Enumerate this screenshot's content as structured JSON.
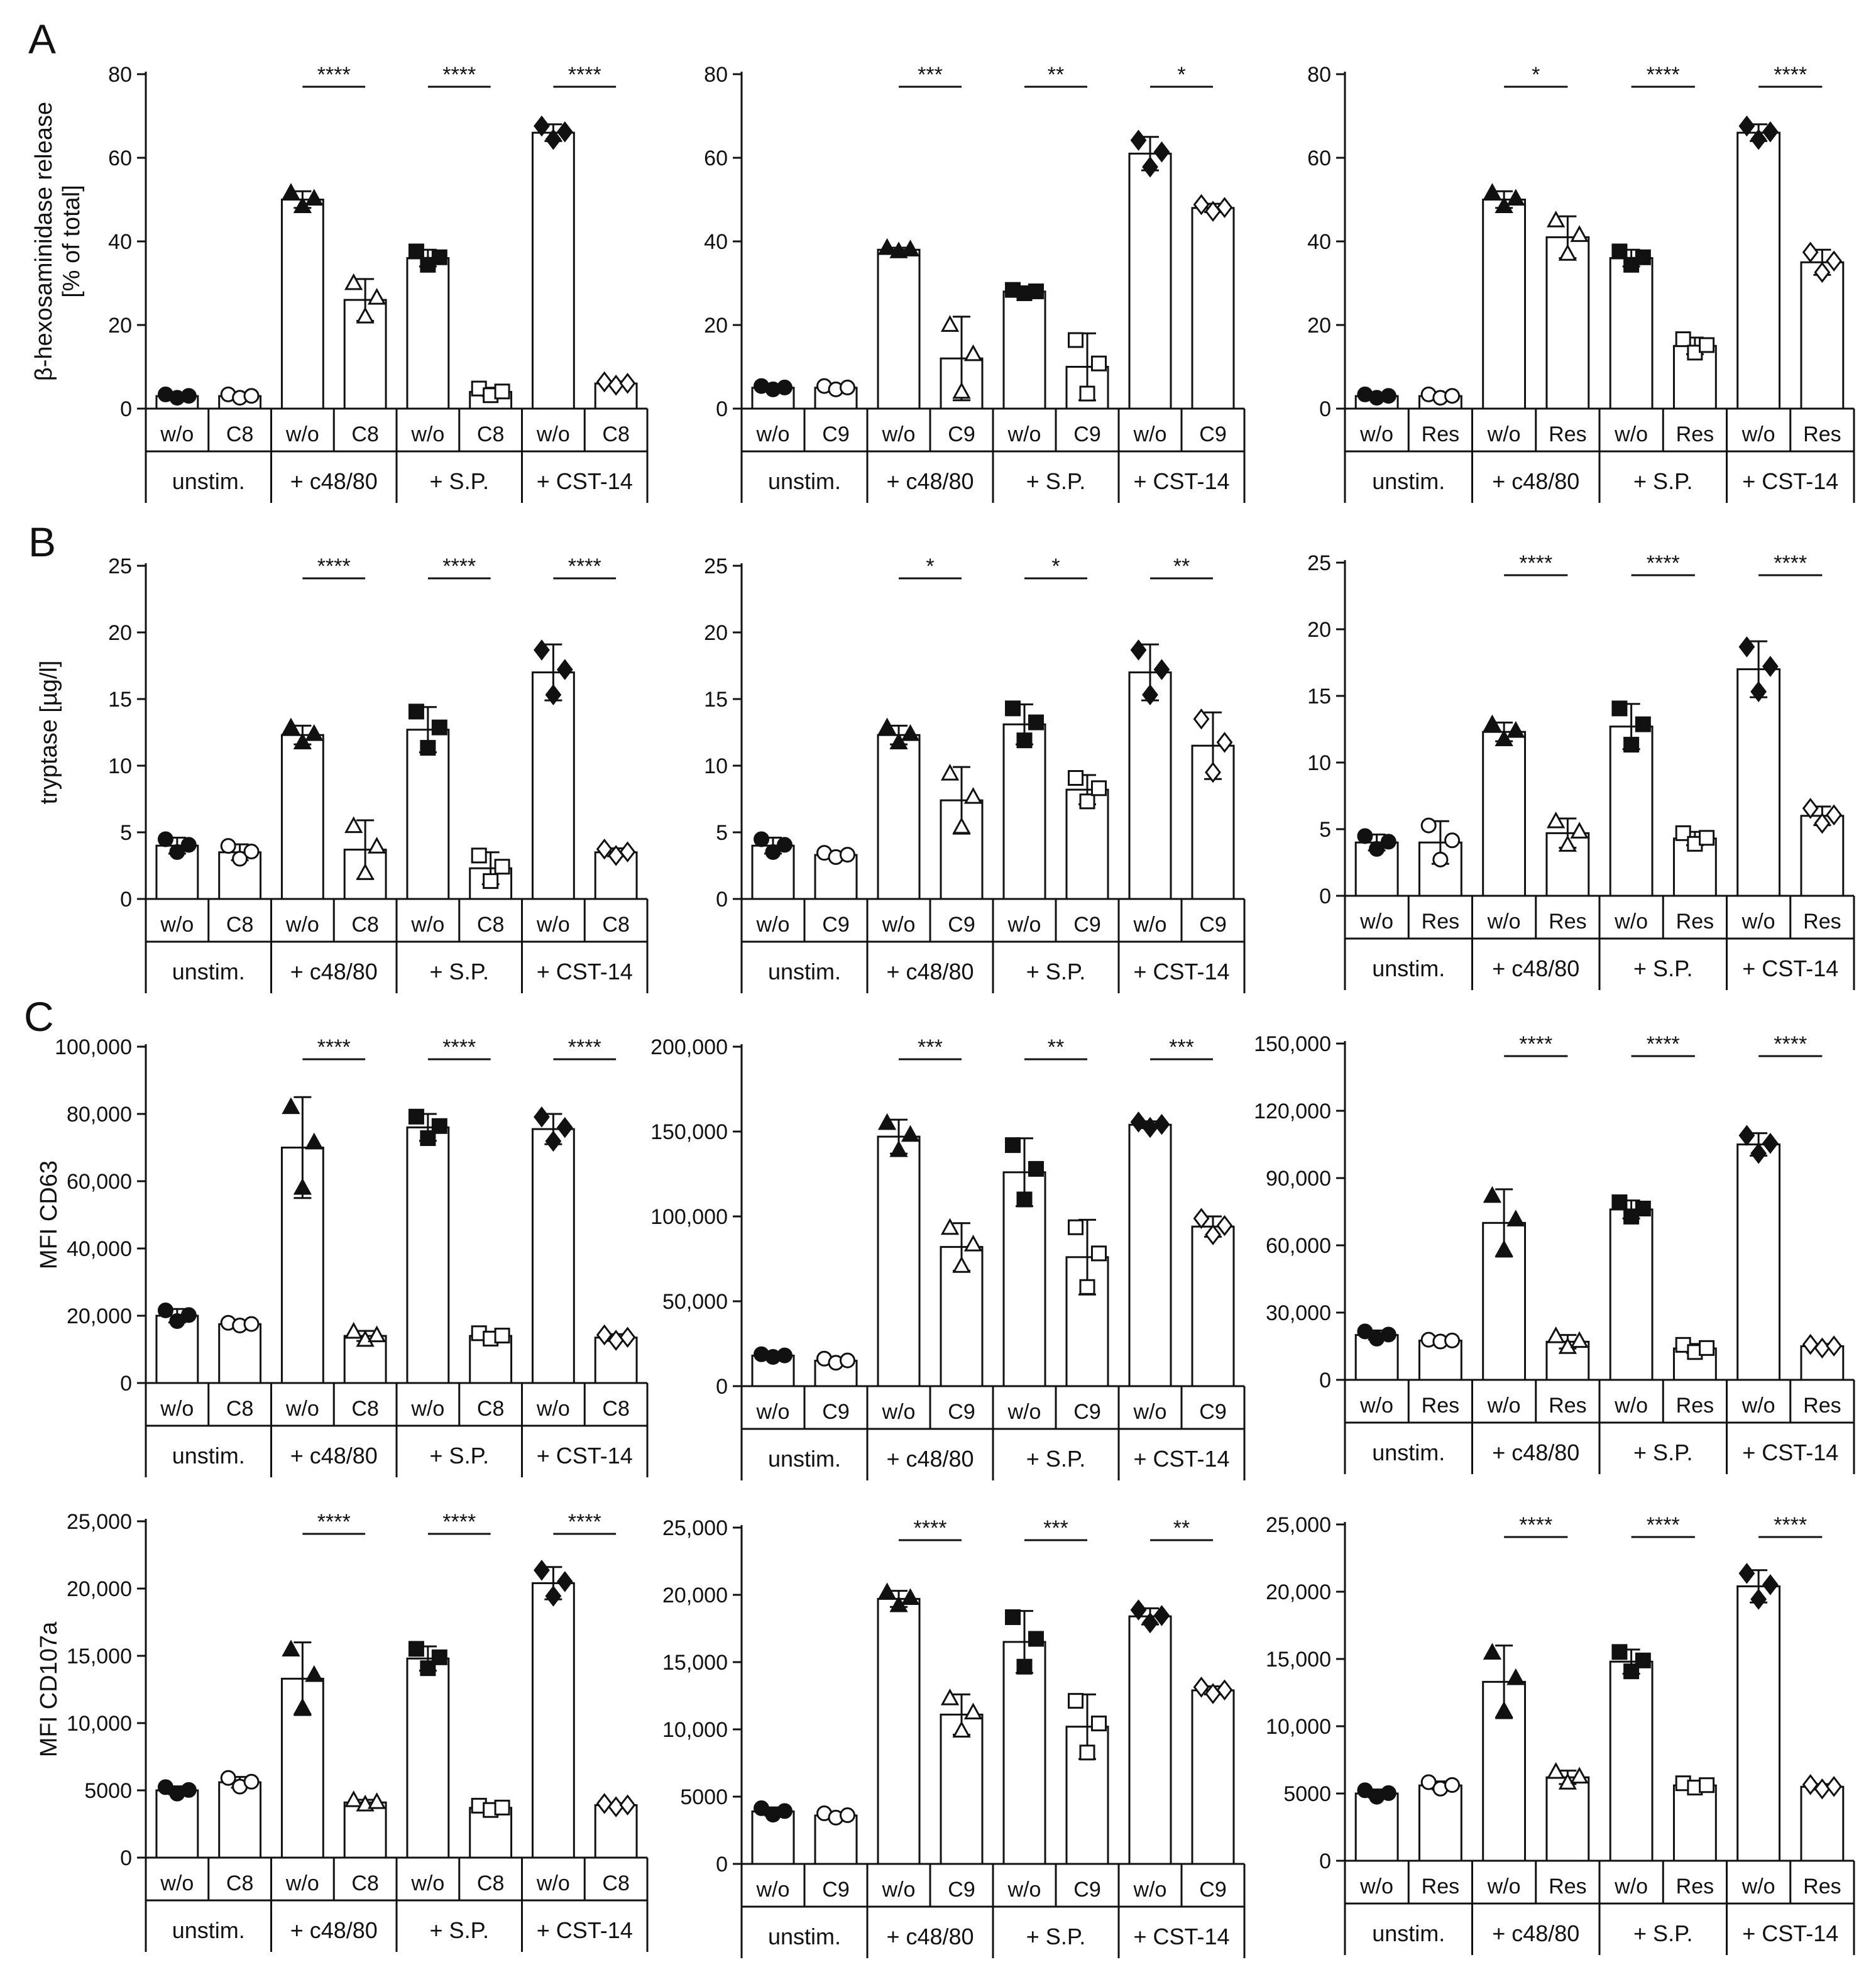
{
  "figure": {
    "panel_letters": [
      "A",
      "B",
      "C"
    ],
    "common_groups": [
      "unstim.",
      "+ c48/80",
      "+ S.P.",
      "+ CST-14"
    ]
  },
  "chart_data": [
    {
      "id": "A1",
      "type": "bar",
      "panel_letter": "A",
      "ylabel": "β-hexosaminidase release\n[% of total]",
      "ylim": [
        0,
        80
      ],
      "yticks": [
        "0",
        "20",
        "40",
        "60",
        "80"
      ],
      "categories": [
        "w/o",
        "C8",
        "w/o",
        "C8",
        "w/o",
        "C8",
        "w/o",
        "C8"
      ],
      "groups": [
        "unstim.",
        "+ c48/80",
        "+ S.P.",
        "+ CST-14"
      ],
      "values": [
        3,
        3,
        50,
        26,
        36,
        4,
        66,
        6
      ],
      "errors": [
        0.5,
        0.5,
        2,
        5,
        2,
        1,
        2,
        0.5
      ],
      "markers": [
        "circle",
        "circle",
        "triangle",
        "triangle",
        "square",
        "square",
        "diamond",
        "diamond"
      ],
      "significance": [
        "****",
        "****",
        "****"
      ]
    },
    {
      "id": "A2",
      "type": "bar",
      "panel_letter": "",
      "ylabel": "",
      "ylim": [
        0,
        80
      ],
      "yticks": [
        "0",
        "20",
        "40",
        "60",
        "80"
      ],
      "categories": [
        "w/o",
        "C9",
        "w/o",
        "C9",
        "w/o",
        "C9",
        "w/o",
        "C9"
      ],
      "groups": [
        "unstim.",
        "+ c48/80",
        "+ S.P.",
        "+ CST-14"
      ],
      "values": [
        5,
        5,
        38,
        12,
        28,
        10,
        61,
        48
      ],
      "errors": [
        0.5,
        0.5,
        0.5,
        10,
        0.5,
        8,
        4,
        1
      ],
      "markers": [
        "circle",
        "circle",
        "triangle",
        "triangle",
        "square",
        "square",
        "diamond",
        "diamond"
      ],
      "significance": [
        "***",
        "**",
        "*"
      ]
    },
    {
      "id": "A3",
      "type": "bar",
      "panel_letter": "",
      "ylabel": "",
      "ylim": [
        0,
        80
      ],
      "yticks": [
        "0",
        "20",
        "40",
        "60",
        "80"
      ],
      "categories": [
        "w/o",
        "Res",
        "w/o",
        "Res",
        "w/o",
        "Res",
        "w/o",
        "Res"
      ],
      "groups": [
        "unstim.",
        "+ c48/80",
        "+ S.P.",
        "+ CST-14"
      ],
      "values": [
        3,
        3,
        50,
        41,
        36,
        15,
        66,
        35
      ],
      "errors": [
        0.5,
        0.5,
        2,
        5,
        2,
        2,
        2,
        3
      ],
      "markers": [
        "circle",
        "circle",
        "triangle",
        "triangle",
        "square",
        "square",
        "diamond",
        "diamond"
      ],
      "significance": [
        "*",
        "****",
        "****"
      ]
    },
    {
      "id": "B1",
      "type": "bar",
      "panel_letter": "B",
      "ylabel": "tryptase [µg/l]",
      "ylim": [
        0,
        25
      ],
      "yticks": [
        "0",
        "5",
        "10",
        "15",
        "20",
        "25"
      ],
      "categories": [
        "w/o",
        "C8",
        "w/o",
        "C8",
        "w/o",
        "C8",
        "w/o",
        "C8"
      ],
      "groups": [
        "unstim.",
        "+ c48/80",
        "+ S.P.",
        "+ CST-14"
      ],
      "values": [
        4,
        3.5,
        12.3,
        3.7,
        12.7,
        2.3,
        17,
        3.5
      ],
      "errors": [
        0.6,
        0.6,
        0.7,
        2.2,
        1.7,
        1.2,
        2.1,
        0.3
      ],
      "markers": [
        "circle",
        "circle",
        "triangle",
        "triangle",
        "square",
        "square",
        "diamond",
        "diamond"
      ],
      "significance": [
        "****",
        "****",
        "****"
      ]
    },
    {
      "id": "B2",
      "type": "bar",
      "panel_letter": "",
      "ylabel": "",
      "ylim": [
        0,
        25
      ],
      "yticks": [
        "0",
        "5",
        "10",
        "15",
        "20",
        "25"
      ],
      "categories": [
        "w/o",
        "C9",
        "w/o",
        "C9",
        "w/o",
        "C9",
        "w/o",
        "C9"
      ],
      "groups": [
        "unstim.",
        "+ c48/80",
        "+ S.P.",
        "+ CST-14"
      ],
      "values": [
        4,
        3.3,
        12.3,
        7.4,
        13.1,
        8.2,
        17,
        11.5
      ],
      "errors": [
        0.6,
        0.2,
        0.7,
        2.5,
        1.5,
        1.1,
        2.1,
        2.5
      ],
      "markers": [
        "circle",
        "circle",
        "triangle",
        "triangle",
        "square",
        "square",
        "diamond",
        "diamond"
      ],
      "significance": [
        "*",
        "*",
        "**"
      ]
    },
    {
      "id": "B3",
      "type": "bar",
      "panel_letter": "",
      "ylabel": "",
      "ylim": [
        0,
        25
      ],
      "yticks": [
        "0",
        "5",
        "10",
        "15",
        "20",
        "25"
      ],
      "categories": [
        "w/o",
        "Res",
        "w/o",
        "Res",
        "w/o",
        "Res",
        "w/o",
        "Res"
      ],
      "groups": [
        "unstim.",
        "+ c48/80",
        "+ S.P.",
        "+ CST-14"
      ],
      "values": [
        4,
        4,
        12.3,
        4.7,
        12.7,
        4.3,
        17,
        6
      ],
      "errors": [
        0.6,
        1.6,
        0.7,
        1.1,
        1.7,
        0.5,
        2.1,
        0.7
      ],
      "markers": [
        "circle",
        "circle",
        "triangle",
        "triangle",
        "square",
        "square",
        "diamond",
        "diamond"
      ],
      "significance": [
        "****",
        "****",
        "****"
      ]
    },
    {
      "id": "C1",
      "type": "bar",
      "panel_letter": "C",
      "ylabel": "MFI CD63",
      "ylim": [
        0,
        100000
      ],
      "yticks": [
        "0",
        "20,000",
        "40,000",
        "60,000",
        "80,000",
        "100,000"
      ],
      "categories": [
        "w/o",
        "C8",
        "w/o",
        "C8",
        "w/o",
        "C8",
        "w/o",
        "C8"
      ],
      "groups": [
        "unstim.",
        "+ c48/80",
        "+ S.P.",
        "+ CST-14"
      ],
      "values": [
        20000,
        17500,
        70000,
        14000,
        76000,
        14000,
        75500,
        13500
      ],
      "errors": [
        2000,
        500,
        15000,
        1500,
        4000,
        1000,
        4500,
        1000
      ],
      "markers": [
        "circle",
        "circle",
        "triangle",
        "triangle",
        "square",
        "square",
        "diamond",
        "diamond"
      ],
      "significance": [
        "****",
        "****",
        "****"
      ]
    },
    {
      "id": "C2",
      "type": "bar",
      "panel_letter": "",
      "ylabel": "",
      "ylim": [
        0,
        200000
      ],
      "yticks": [
        "0",
        "50,000",
        "100,000",
        "150,000",
        "200,000"
      ],
      "categories": [
        "w/o",
        "C9",
        "w/o",
        "C9",
        "w/o",
        "C9",
        "w/o",
        "C9"
      ],
      "groups": [
        "unstim.",
        "+ c48/80",
        "+ S.P.",
        "+ CST-14"
      ],
      "values": [
        18000,
        15000,
        147000,
        82000,
        126000,
        76000,
        154000,
        94000
      ],
      "errors": [
        1000,
        1500,
        10000,
        14000,
        20000,
        22000,
        2000,
        6000
      ],
      "markers": [
        "circle",
        "circle",
        "triangle",
        "triangle",
        "square",
        "square",
        "diamond",
        "diamond"
      ],
      "significance": [
        "***",
        "**",
        "***"
      ]
    },
    {
      "id": "C3",
      "type": "bar",
      "panel_letter": "",
      "ylabel": "",
      "ylim": [
        0,
        150000
      ],
      "yticks": [
        "0",
        "30,000",
        "60,000",
        "90,000",
        "120,000",
        "150,000"
      ],
      "categories": [
        "w/o",
        "Res",
        "w/o",
        "Res",
        "w/o",
        "Res",
        "w/o",
        "Res"
      ],
      "groups": [
        "unstim.",
        "+ c48/80",
        "+ S.P.",
        "+ CST-14"
      ],
      "values": [
        20000,
        17500,
        70000,
        17000,
        76000,
        14000,
        105000,
        15000
      ],
      "errors": [
        2000,
        500,
        15000,
        3000,
        4000,
        2000,
        5000,
        1000
      ],
      "markers": [
        "circle",
        "circle",
        "triangle",
        "triangle",
        "square",
        "square",
        "diamond",
        "diamond"
      ],
      "significance": [
        "****",
        "****",
        "****"
      ]
    },
    {
      "id": "D1",
      "type": "bar",
      "panel_letter": "",
      "ylabel": "MFI CD107a",
      "ylim": [
        0,
        25000
      ],
      "yticks": [
        "0",
        "5000",
        "10,000",
        "15,000",
        "20,000",
        "25,000"
      ],
      "categories": [
        "w/o",
        "C8",
        "w/o",
        "C8",
        "w/o",
        "C8",
        "w/o",
        "C8"
      ],
      "groups": [
        "unstim.",
        "+ c48/80",
        "+ S.P.",
        "+ CST-14"
      ],
      "values": [
        5000,
        5600,
        13300,
        4100,
        14800,
        3700,
        20400,
        3900
      ],
      "errors": [
        300,
        400,
        2700,
        200,
        900,
        200,
        1200,
        150
      ],
      "markers": [
        "circle",
        "circle",
        "triangle",
        "triangle",
        "square",
        "square",
        "diamond",
        "diamond"
      ],
      "significance": [
        "****",
        "****",
        "****"
      ]
    },
    {
      "id": "D2",
      "type": "bar",
      "panel_letter": "",
      "ylabel": "",
      "ylim": [
        0,
        25000
      ],
      "yticks": [
        "0",
        "5000",
        "10,000",
        "15,000",
        "20,000",
        "25,000"
      ],
      "categories": [
        "w/o",
        "C9",
        "w/o",
        "C9",
        "w/o",
        "C9",
        "w/o",
        "C9"
      ],
      "groups": [
        "unstim.",
        "+ c48/80",
        "+ S.P.",
        "+ CST-14"
      ],
      "values": [
        3900,
        3600,
        19700,
        11100,
        16500,
        10200,
        18400,
        12900
      ],
      "errors": [
        300,
        200,
        600,
        1500,
        2300,
        2400,
        600,
        300
      ],
      "markers": [
        "circle",
        "circle",
        "triangle",
        "triangle",
        "square",
        "square",
        "diamond",
        "diamond"
      ],
      "significance": [
        "****",
        "***",
        "**"
      ]
    },
    {
      "id": "D3",
      "type": "bar",
      "panel_letter": "",
      "ylabel": "",
      "ylim": [
        0,
        25000
      ],
      "yticks": [
        "0",
        "5000",
        "10,000",
        "15,000",
        "20,000",
        "25,000"
      ],
      "categories": [
        "w/o",
        "Res",
        "w/o",
        "Res",
        "w/o",
        "Res",
        "w/o",
        "Res"
      ],
      "groups": [
        "unstim.",
        "+ c48/80",
        "+ S.P.",
        "+ CST-14"
      ],
      "values": [
        5000,
        5600,
        13300,
        6200,
        14800,
        5600,
        20400,
        5500
      ],
      "errors": [
        300,
        300,
        2700,
        500,
        900,
        200,
        1200,
        200
      ],
      "markers": [
        "circle",
        "circle",
        "triangle",
        "triangle",
        "square",
        "square",
        "diamond",
        "diamond"
      ],
      "significance": [
        "****",
        "****",
        "****"
      ]
    }
  ]
}
